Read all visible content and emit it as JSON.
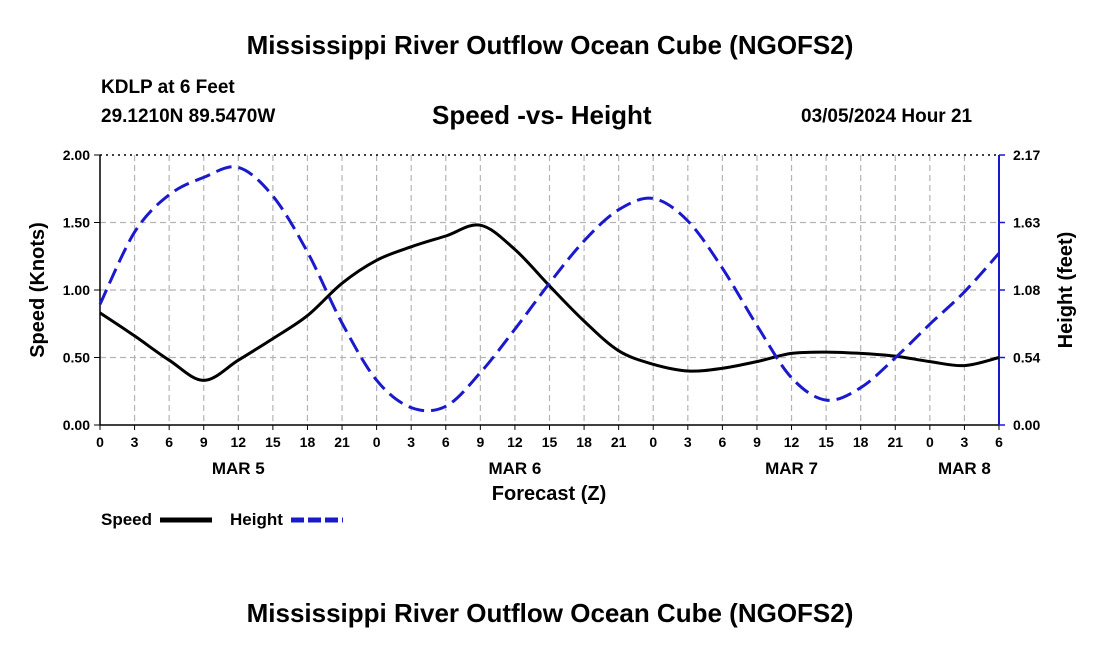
{
  "header": {
    "title": "Mississippi River Outflow Ocean Cube (NGOFS2)",
    "station": "KDLP at 6 Feet",
    "coords": "29.1210N  89.5470W",
    "subtitle": "Speed -vs- Height",
    "datetime": "03/05/2024 Hour 21"
  },
  "footer": {
    "title": "Mississippi River Outflow Ocean Cube (NGOFS2)"
  },
  "chart_data": {
    "type": "line",
    "xlabel": "Forecast (Z)",
    "ylabel": "Speed (Knots)",
    "ylabel_right": "Height (feet)",
    "x_range_hours": [
      0,
      78
    ],
    "x_tick_labels": [
      "0",
      "3",
      "6",
      "9",
      "12",
      "15",
      "18",
      "21",
      "0",
      "3",
      "6",
      "9",
      "12",
      "15",
      "18",
      "21",
      "0",
      "3",
      "6",
      "9",
      "12",
      "15",
      "18",
      "21",
      "0",
      "3",
      "6"
    ],
    "day_labels": [
      {
        "label": "MAR 5",
        "hour": 12
      },
      {
        "label": "MAR 6",
        "hour": 36
      },
      {
        "label": "MAR 7",
        "hour": 60
      },
      {
        "label": "MAR 8",
        "hour": 75
      }
    ],
    "ylim_left": [
      0,
      2
    ],
    "y_ticks_left": [
      "0.00",
      "0.50",
      "1.00",
      "1.50",
      "2.00"
    ],
    "ylim_right": [
      0,
      2.17
    ],
    "y_ticks_right": [
      "0.00",
      "0.54",
      "1.08",
      "1.63",
      "2.17"
    ],
    "grid": true,
    "legend_position": "bottom-left",
    "colors": {
      "speed": "#000000",
      "height": "#1a1acc",
      "grid": "#b4b4b4"
    },
    "series": [
      {
        "name": "Speed",
        "axis": "left",
        "style": "solid",
        "x": [
          0,
          3,
          6,
          9,
          12,
          15,
          18,
          21,
          24,
          27,
          30,
          33,
          36,
          39,
          42,
          45,
          48,
          51,
          54,
          57,
          60,
          63,
          66,
          69,
          72,
          75,
          78
        ],
        "values": [
          0.83,
          0.66,
          0.48,
          0.33,
          0.48,
          0.64,
          0.81,
          1.05,
          1.22,
          1.32,
          1.4,
          1.48,
          1.3,
          1.03,
          0.77,
          0.55,
          0.45,
          0.4,
          0.42,
          0.47,
          0.53,
          0.54,
          0.53,
          0.51,
          0.47,
          0.44,
          0.5
        ]
      },
      {
        "name": "Height",
        "axis": "right",
        "style": "dashed",
        "x": [
          0,
          3,
          6,
          9,
          12,
          15,
          18,
          21,
          24,
          27,
          30,
          33,
          36,
          39,
          42,
          45,
          48,
          51,
          54,
          57,
          60,
          63,
          66,
          69,
          72,
          75,
          78
        ],
        "values": [
          0.97,
          1.55,
          1.85,
          1.99,
          2.07,
          1.84,
          1.39,
          0.82,
          0.36,
          0.14,
          0.15,
          0.42,
          0.77,
          1.14,
          1.48,
          1.73,
          1.82,
          1.64,
          1.26,
          0.8,
          0.38,
          0.2,
          0.3,
          0.54,
          0.81,
          1.07,
          1.38
        ]
      }
    ]
  }
}
